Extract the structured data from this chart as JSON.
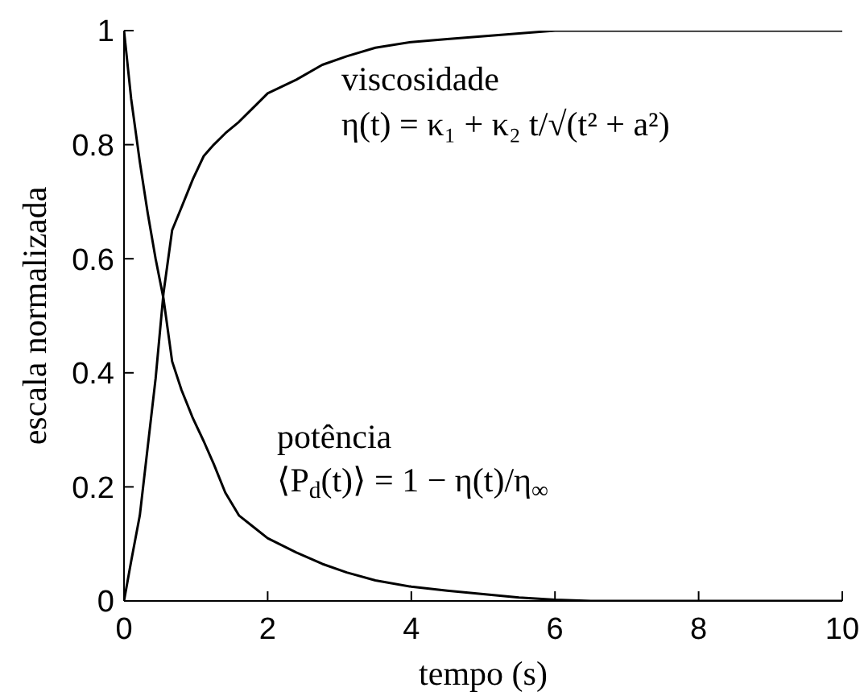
{
  "chart_data": {
    "type": "line",
    "xlabel": "tempo (s)",
    "ylabel": "escala normalizada",
    "x": [
      0,
      0.1,
      0.22,
      0.33,
      0.44,
      0.55,
      0.67,
      0.8,
      0.96,
      1.11,
      1.25,
      1.41,
      1.6,
      1.8,
      2,
      2.4,
      2.76,
      3.1,
      3.5,
      4,
      4.5,
      5,
      5.5,
      6,
      6.5,
      7,
      8,
      9,
      10
    ],
    "series": [
      {
        "name": "viscosidade",
        "color": "#000000",
        "values": [
          0,
          0.07,
          0.15,
          0.27,
          0.39,
          0.54,
          0.65,
          0.69,
          0.74,
          0.78,
          0.8,
          0.82,
          0.84,
          0.865,
          0.89,
          0.914,
          0.94,
          0.955,
          0.97,
          0.98,
          0.985,
          0.99,
          0.995,
          1,
          1,
          1,
          1,
          1,
          1
        ]
      },
      {
        "name": "potência",
        "color": "#000000",
        "values": [
          1,
          0.88,
          0.77,
          0.68,
          0.6,
          0.53,
          0.42,
          0.37,
          0.32,
          0.28,
          0.24,
          0.19,
          0.15,
          0.13,
          0.11,
          0.085,
          0.065,
          0.05,
          0.036,
          0.025,
          0.018,
          0.012,
          0.006,
          0.002,
          0,
          0,
          0,
          0,
          0
        ]
      }
    ],
    "xlim": [
      0,
      10
    ],
    "ylim": [
      0,
      1
    ],
    "xticks": [
      0,
      2,
      4,
      6,
      8,
      10
    ],
    "yticks": [
      0,
      0.2,
      0.4,
      0.6,
      0.8,
      1
    ],
    "marker": "none",
    "line_style": "solid",
    "annotations": [
      "η(t) = κ₁ + κ₂ t/√(t² + a²)",
      "⟨P$_{d}$(t)⟩ = 1 − η(t)/η$_{∞}$"
    ]
  }
}
